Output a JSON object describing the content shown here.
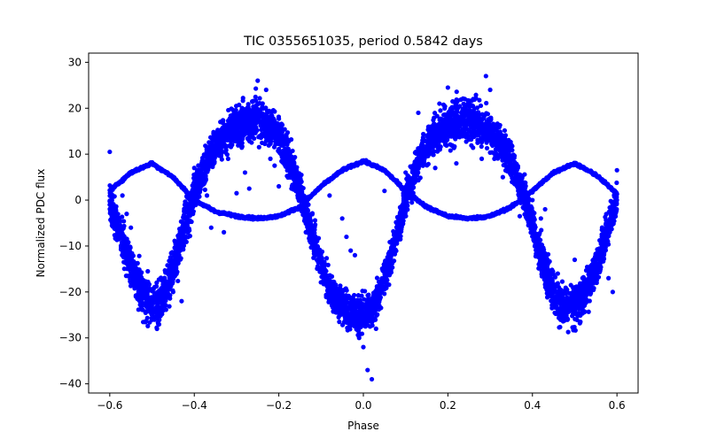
{
  "chart_data": {
    "type": "scatter",
    "title": "TIC 0355651035, period 0.5842 days",
    "xlabel": "Phase",
    "ylabel": "Normalized PDC flux",
    "xlim": [
      -0.65,
      0.65
    ],
    "ylim": [
      -42.0,
      32.0
    ],
    "xticks": [
      -0.6,
      -0.4,
      -0.2,
      0.0,
      0.2,
      0.4,
      0.6
    ],
    "xtick_labels": [
      "−0.6",
      "−0.4",
      "−0.2",
      "0.0",
      "0.2",
      "0.4",
      "0.6"
    ],
    "yticks": [
      -40,
      -30,
      -20,
      -10,
      0,
      10,
      20,
      30
    ],
    "ytick_labels": [
      "−40",
      "−30",
      "−20",
      "−10",
      "0",
      "10",
      "20",
      "30"
    ],
    "grid": false,
    "legend": "none",
    "marker_color": "#0000ff",
    "series": [
      {
        "description_key": "dense",
        "x": [
          -0.6,
          -0.58,
          -0.56,
          -0.54,
          -0.52,
          -0.5,
          -0.48,
          -0.46,
          -0.44,
          -0.42,
          -0.4,
          -0.38,
          -0.36,
          -0.34,
          -0.32,
          -0.3,
          -0.28,
          -0.26,
          -0.25,
          -0.24,
          -0.22,
          -0.2,
          -0.18,
          -0.16,
          -0.14,
          -0.12,
          -0.1,
          -0.08,
          -0.06,
          -0.04,
          -0.02,
          0.0,
          0.02,
          0.04,
          0.06,
          0.08,
          0.1,
          0.12,
          0.14,
          0.16,
          0.18,
          0.2,
          0.22,
          0.24,
          0.25,
          0.26,
          0.28,
          0.3,
          0.32,
          0.34,
          0.36,
          0.38,
          0.4,
          0.42,
          0.44,
          0.46,
          0.48,
          0.5,
          0.52,
          0.54,
          0.56,
          0.58,
          0.6
        ],
        "y": [
          0,
          -6,
          -12,
          -17,
          -21,
          -23,
          -22,
          -18,
          -12,
          -5,
          1,
          6,
          10,
          13,
          15,
          16,
          17,
          17.5,
          17.5,
          17,
          16,
          14,
          10,
          5,
          -1,
          -8,
          -14,
          -19,
          -22,
          -24,
          -25,
          -25,
          -24,
          -20,
          -14,
          -7,
          0,
          6,
          10,
          13,
          15,
          16.5,
          17,
          17.5,
          17.5,
          17,
          16,
          15,
          13,
          10,
          6,
          1,
          -5,
          -12,
          -18,
          -22,
          -23,
          -23,
          -21,
          -17,
          -12,
          -6,
          0
        ],
        "scatter_half_width": [
          4,
          4,
          5,
          5,
          5,
          5,
          5,
          5,
          5,
          5,
          4,
          4,
          4,
          4,
          4,
          4,
          5,
          5,
          5,
          5,
          4,
          4,
          4,
          4,
          4,
          4,
          4,
          4,
          4,
          4,
          4,
          4,
          4,
          4,
          4,
          4,
          4,
          4,
          4,
          4,
          4,
          5,
          5,
          5,
          5,
          5,
          4,
          4,
          4,
          4,
          4,
          4,
          4,
          5,
          5,
          5,
          5,
          5,
          5,
          5,
          5,
          4,
          4
        ]
      },
      {
        "description_key": "thin",
        "x": [
          -0.6,
          -0.55,
          -0.5,
          -0.45,
          -0.4,
          -0.35,
          -0.3,
          -0.25,
          -0.2,
          -0.15,
          -0.1,
          -0.05,
          0.0,
          0.05,
          0.1,
          0.15,
          0.2,
          0.25,
          0.3,
          0.35,
          0.4,
          0.45,
          0.5,
          0.55,
          0.6
        ],
        "y": [
          2,
          6,
          8,
          5,
          0,
          -2.5,
          -3.5,
          -4,
          -3.5,
          -1.5,
          3,
          6.5,
          8.5,
          6.5,
          2,
          -1.5,
          -3.5,
          -4,
          -3.5,
          -1.5,
          2,
          6,
          8,
          5.5,
          1.5
        ]
      }
    ],
    "outliers": [
      {
        "x": -0.6,
        "y": 10.5
      },
      {
        "x": -0.57,
        "y": 1
      },
      {
        "x": -0.56,
        "y": -3
      },
      {
        "x": -0.55,
        "y": -6
      },
      {
        "x": -0.53,
        "y": -16
      },
      {
        "x": -0.51,
        "y": -15.5
      },
      {
        "x": -0.47,
        "y": -17
      },
      {
        "x": -0.45,
        "y": -20
      },
      {
        "x": -0.43,
        "y": -22
      },
      {
        "x": -0.44,
        "y": -12
      },
      {
        "x": -0.4,
        "y": 7
      },
      {
        "x": -0.38,
        "y": 5.5
      },
      {
        "x": -0.37,
        "y": 1
      },
      {
        "x": -0.36,
        "y": -6
      },
      {
        "x": -0.33,
        "y": -7
      },
      {
        "x": -0.32,
        "y": 9
      },
      {
        "x": -0.3,
        "y": 1.5
      },
      {
        "x": -0.29,
        "y": 12
      },
      {
        "x": -0.28,
        "y": 6
      },
      {
        "x": -0.27,
        "y": 2.5
      },
      {
        "x": -0.25,
        "y": 26
      },
      {
        "x": -0.24,
        "y": 21
      },
      {
        "x": -0.23,
        "y": 24
      },
      {
        "x": -0.22,
        "y": 9
      },
      {
        "x": -0.21,
        "y": 7.5
      },
      {
        "x": -0.2,
        "y": 3
      },
      {
        "x": -0.19,
        "y": 9
      },
      {
        "x": -0.17,
        "y": 2.5
      },
      {
        "x": -0.15,
        "y": 2
      },
      {
        "x": -0.13,
        "y": -1
      },
      {
        "x": -0.08,
        "y": 1
      },
      {
        "x": -0.05,
        "y": -4
      },
      {
        "x": -0.04,
        "y": -8
      },
      {
        "x": -0.03,
        "y": -11
      },
      {
        "x": -0.02,
        "y": -12
      },
      {
        "x": -0.01,
        "y": -30
      },
      {
        "x": 0.0,
        "y": -32
      },
      {
        "x": 0.01,
        "y": -37
      },
      {
        "x": 0.02,
        "y": -39
      },
      {
        "x": 0.03,
        "y": -28
      },
      {
        "x": 0.05,
        "y": 2
      },
      {
        "x": 0.1,
        "y": 6
      },
      {
        "x": 0.13,
        "y": 19
      },
      {
        "x": 0.14,
        "y": 13
      },
      {
        "x": 0.15,
        "y": 10
      },
      {
        "x": 0.17,
        "y": 7
      },
      {
        "x": 0.18,
        "y": 21
      },
      {
        "x": 0.2,
        "y": 24.5
      },
      {
        "x": 0.22,
        "y": 8
      },
      {
        "x": 0.24,
        "y": 22
      },
      {
        "x": 0.26,
        "y": 22
      },
      {
        "x": 0.28,
        "y": 9
      },
      {
        "x": 0.29,
        "y": 27
      },
      {
        "x": 0.3,
        "y": 24
      },
      {
        "x": 0.31,
        "y": 9
      },
      {
        "x": 0.33,
        "y": 5
      },
      {
        "x": 0.36,
        "y": 5.5
      },
      {
        "x": 0.38,
        "y": 2
      },
      {
        "x": 0.4,
        "y": 0
      },
      {
        "x": 0.42,
        "y": -4
      },
      {
        "x": 0.43,
        "y": -2
      },
      {
        "x": 0.46,
        "y": -16
      },
      {
        "x": 0.5,
        "y": -13
      },
      {
        "x": 0.53,
        "y": -19.5
      },
      {
        "x": 0.55,
        "y": -15
      },
      {
        "x": 0.58,
        "y": -17
      },
      {
        "x": 0.59,
        "y": -20
      },
      {
        "x": 0.6,
        "y": 6.5
      },
      {
        "x": 0.45,
        "y": -20
      },
      {
        "x": 0.37,
        "y": -3.5
      }
    ]
  }
}
